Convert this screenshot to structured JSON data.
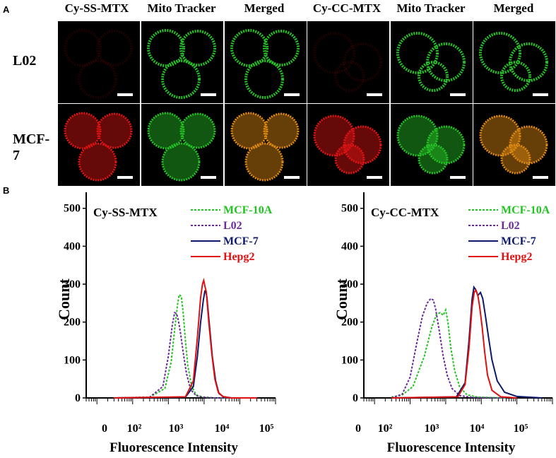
{
  "panel_a": {
    "letter": "A",
    "column_headers": [
      "Cy-SS-MTX",
      "Mito Tracker",
      "Merged",
      "Cy-CC-MTX",
      "Mito Tracker",
      "Merged"
    ],
    "row_labels": [
      "L02",
      "MCF-7"
    ],
    "channel_colors": {
      "probe": "#e01414",
      "tracker": "#26c226",
      "merged": "#e08a12"
    }
  },
  "panel_b": {
    "letter": "B"
  },
  "chart_data": [
    {
      "type": "line",
      "title": "Cy-SS-MTX",
      "xlabel": "Fluorescence Intensity",
      "ylabel": "Count",
      "xscale": "log",
      "xtick_labels": [
        "0",
        "10²",
        "10³",
        "10⁴",
        "10⁵"
      ],
      "ylim": [
        0,
        520
      ],
      "yticks": [
        0,
        100,
        200,
        300,
        400,
        500
      ],
      "legend_position": "top-right",
      "series": [
        {
          "name": "MCF-10A",
          "color": "#22c422",
          "style": "dashed",
          "x": [
            30,
            300,
            800,
            1200,
            1500,
            1800,
            2000,
            2300,
            2600,
            3000,
            3500,
            4500,
            6000,
            9000,
            20000,
            100000
          ],
          "y": [
            0,
            2,
            25,
            95,
            180,
            245,
            272,
            268,
            225,
            150,
            85,
            30,
            8,
            2,
            0,
            0
          ]
        },
        {
          "name": "L02",
          "color": "#6a2c9a",
          "style": "dashed",
          "x": [
            30,
            300,
            700,
            1000,
            1300,
            1500,
            1700,
            1900,
            2200,
            2600,
            3200,
            4200,
            6000,
            9000,
            20000,
            100000
          ],
          "y": [
            0,
            2,
            30,
            110,
            195,
            225,
            222,
            205,
            170,
            120,
            65,
            22,
            6,
            2,
            0,
            0
          ]
        },
        {
          "name": "MCF-7",
          "color": "#0d1a6b",
          "style": "solid",
          "x": [
            30,
            3000,
            5000,
            6500,
            8000,
            9500,
            10500,
            11000,
            12000,
            14000,
            17000,
            21000,
            26000,
            35000,
            60000,
            300000
          ],
          "y": [
            0,
            2,
            30,
            110,
            200,
            258,
            282,
            283,
            265,
            195,
            110,
            45,
            12,
            3,
            0,
            0
          ]
        },
        {
          "name": "Hepg2",
          "color": "#e01010",
          "style": "solid",
          "x": [
            30,
            3000,
            5000,
            6500,
            8000,
            9000,
            9800,
            10500,
            11500,
            13500,
            16500,
            20000,
            25000,
            33000,
            55000,
            300000
          ],
          "y": [
            0,
            3,
            45,
            160,
            265,
            300,
            310,
            295,
            280,
            200,
            115,
            50,
            15,
            4,
            0,
            0
          ]
        }
      ]
    },
    {
      "type": "line",
      "title": "Cy-CC-MTX",
      "xlabel": "Fluorescence Intensity",
      "ylabel": "Count",
      "xscale": "log",
      "xtick_labels": [
        "0",
        "10²",
        "10³",
        "10⁴",
        "10⁵"
      ],
      "ylim": [
        0,
        520
      ],
      "yticks": [
        0,
        100,
        200,
        300,
        400,
        500
      ],
      "legend_position": "top-right",
      "series": [
        {
          "name": "MCF-10A",
          "color": "#22c422",
          "style": "dashed",
          "x": [
            30,
            60,
            120,
            250,
            400,
            550,
            700,
            850,
            1000,
            1150,
            1400,
            1800,
            2500,
            4000,
            8000,
            50000
          ],
          "y": [
            2,
            8,
            30,
            110,
            185,
            220,
            225,
            218,
            232,
            200,
            130,
            70,
            28,
            8,
            2,
            0
          ]
        },
        {
          "name": "L02",
          "color": "#6a2c9a",
          "style": "dashed",
          "x": [
            30,
            60,
            100,
            150,
            220,
            300,
            380,
            450,
            520,
            650,
            850,
            1100,
            1500,
            2500,
            6000,
            50000
          ],
          "y": [
            0,
            10,
            55,
            140,
            215,
            250,
            262,
            258,
            235,
            180,
            110,
            60,
            25,
            6,
            1,
            0
          ]
        },
        {
          "name": "MCF-7",
          "color": "#0d1a6b",
          "style": "solid",
          "x": [
            30,
            2000,
            3500,
            4500,
            5500,
            6200,
            7000,
            8000,
            9500,
            11000,
            13000,
            16000,
            20000,
            28000,
            45000,
            100000,
            500000
          ],
          "y": [
            0,
            3,
            40,
            150,
            260,
            292,
            285,
            270,
            278,
            262,
            218,
            160,
            100,
            45,
            15,
            4,
            0
          ]
        },
        {
          "name": "Hepg2",
          "color": "#e01010",
          "style": "solid",
          "x": [
            30,
            2200,
            3500,
            4500,
            5500,
            6300,
            7000,
            8000,
            9000,
            10500,
            12500,
            15000,
            20000,
            35000,
            100000
          ],
          "y": [
            0,
            3,
            35,
            130,
            240,
            278,
            285,
            270,
            240,
            190,
            120,
            60,
            20,
            3,
            0
          ]
        }
      ]
    }
  ]
}
